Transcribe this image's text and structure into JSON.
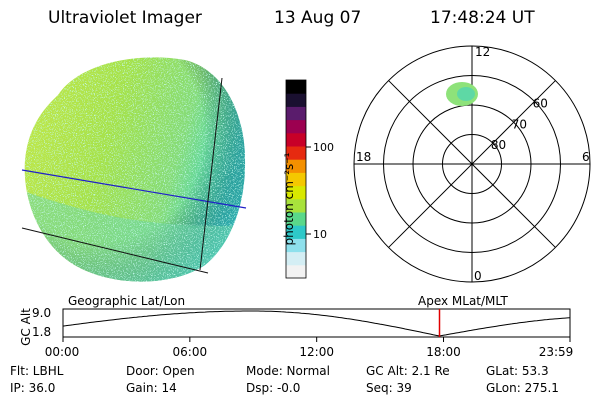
{
  "header": {
    "instrument": "Ultraviolet Imager",
    "date": "13 Aug 07",
    "time": "17:48:24 UT"
  },
  "colorbar": {
    "unit": "photon cm⁻²s⁻¹",
    "ticks": [
      {
        "label": "100",
        "value": 100
      },
      {
        "label": "10",
        "value": 10
      }
    ],
    "colors": [
      "#f2f2f2",
      "#d4eef4",
      "#8ee0ec",
      "#2ec8c8",
      "#5ad88a",
      "#a8e23c",
      "#d8e800",
      "#f4c800",
      "#f49000",
      "#e62a10",
      "#c80028",
      "#9c0050",
      "#5a1c6c",
      "#1a1030",
      "#000000"
    ]
  },
  "polar": {
    "top_label": "12",
    "bottom_label": "0",
    "left_label": "18",
    "right_label": "6",
    "lat_labels": [
      {
        "label": "60",
        "lat": 60
      },
      {
        "label": "70",
        "lat": 70
      },
      {
        "label": "80",
        "lat": 80
      }
    ]
  },
  "timeline": {
    "left_title": "Geographic Lat/Lon",
    "right_title": "Apex  MLat/MLT",
    "axis_label": "GC Alt",
    "y_top": "9.0",
    "y_bottom": "1.8",
    "ticks": [
      "00:00",
      "06:00",
      "12:00",
      "18:00",
      "23:59"
    ],
    "current_hour": 17.81,
    "marker_color": "#e00000"
  },
  "info": {
    "flt": "Flt: LBHL",
    "ip": "IP: 36.0",
    "door": "Door: Open",
    "gain": "Gain: 14",
    "mode": "Mode: Normal",
    "dsp": "Dsp:   -0.0",
    "gcalt": "GC Alt: 2.1 Re",
    "seq": "Seq: 39",
    "glat": "GLat:  53.3",
    "glon": "GLon: 275.1"
  }
}
